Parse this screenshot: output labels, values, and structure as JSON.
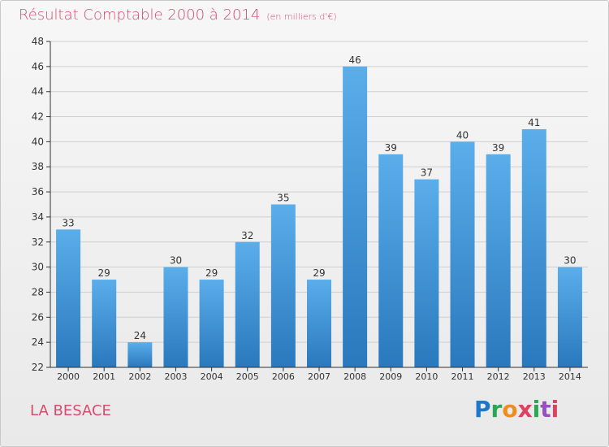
{
  "title": "Résultat Comptable 2000 à 2014",
  "subtitle": "(en milliers d'€)",
  "place": "LA BESACE",
  "logo_text": "Proxiti",
  "colors": {
    "title": "#d84a6e",
    "bar_top": "#5aaeea",
    "bar_bottom": "#2a78bd",
    "axis": "#333333",
    "grid": "#cfcfcf"
  },
  "chart_data": {
    "type": "bar",
    "title": "Résultat Comptable 2000 à 2014",
    "subtitle": "(en milliers d'€)",
    "xlabel": "",
    "ylabel": "",
    "categories": [
      "2000",
      "2001",
      "2002",
      "2003",
      "2004",
      "2005",
      "2006",
      "2007",
      "2008",
      "2009",
      "2010",
      "2011",
      "2012",
      "2013",
      "2014"
    ],
    "values": [
      33,
      29,
      24,
      30,
      29,
      32,
      35,
      29,
      46,
      39,
      37,
      40,
      39,
      41,
      30
    ],
    "ylim": [
      22,
      48
    ],
    "yticks": [
      22,
      24,
      26,
      28,
      30,
      32,
      34,
      36,
      38,
      40,
      42,
      44,
      46,
      48
    ],
    "grid": true
  }
}
